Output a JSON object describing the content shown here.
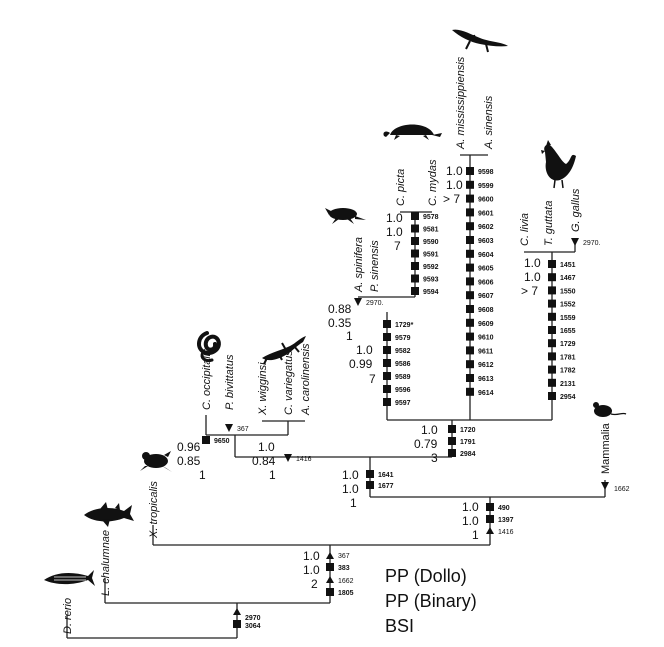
{
  "taxa": {
    "d_rerio": "D. rerio",
    "l_chalumnae": "L. chalumnae",
    "x_tropicalis": "X. tropicalis",
    "c_occipitalis": "C. occipitalis",
    "p_bivittatus": "P. bivittatus",
    "x_wigginsi": "X. wigginsi",
    "c_variegatus": "C. variegatus",
    "a_carolinensis": "A. carolinensis",
    "a_spinifera": "A. spinifera",
    "p_sinensis": "P. sinensis",
    "c_picta": "C. picta",
    "c_mydas": "C. mydas",
    "a_mississippiensis": "A. mississippiensis",
    "a_sinensis": "A. sinensis",
    "c_livia": "C. livia",
    "t_guttata": "T. guttata",
    "g_gallus": "G. gallus",
    "mammalia": "Mammalia"
  },
  "support": {
    "squamata": [
      "0.96",
      "0.85",
      "1"
    ],
    "toxicofera": [
      "1.0",
      "0.84",
      "1"
    ],
    "turtles": [
      "0.88",
      "0.35",
      "1"
    ],
    "cryptodira": [
      "1.0",
      "1.0",
      "7"
    ],
    "archelosauria": [
      "1.0",
      "0.99",
      "7"
    ],
    "crocodylia": [
      "1.0",
      "1.0",
      "> 7"
    ],
    "aves": [
      "1.0",
      "1.0",
      "> 7"
    ],
    "archosauria": [
      "1.0",
      "0.79",
      "3"
    ],
    "sauria": [
      "1.0",
      "1.0",
      "1"
    ],
    "amniota": [
      "1.0",
      "1.0",
      "1"
    ],
    "tetrapoda": [
      "1.0",
      "1.0",
      "2"
    ]
  },
  "events": {
    "snake": "367",
    "squamata": [
      "9650"
    ],
    "toxicofera": "1416",
    "trionychid": "2970.",
    "cryptodira": [
      "9578",
      "9581",
      "9590",
      "9591",
      "9592",
      "9593",
      "9594"
    ],
    "archelosauria": [
      "1729*",
      "9579",
      "9582",
      "9586",
      "9589",
      "9596",
      "9597"
    ],
    "crocodylia": [
      "9598",
      "9599",
      "9600",
      "9601",
      "9602",
      "9603",
      "9604",
      "9605",
      "9606",
      "9607",
      "9608",
      "9609",
      "9610",
      "9611",
      "9612",
      "9613",
      "9614"
    ],
    "aves": [
      "1451",
      "1467",
      "1550",
      "1552",
      "1559",
      "1655",
      "1729",
      "1781",
      "1782",
      "2131",
      "2954"
    ],
    "gallus": "2970.",
    "archosauria": [
      "1720",
      "1791",
      "2984"
    ],
    "sauria": [
      "1641",
      "1677"
    ],
    "mammalia": "1662",
    "amniota": [
      "490",
      "1397"
    ],
    "amniota_loss": "1416",
    "tetrapoda_a": "367",
    "tetrapoda_b": [
      "383"
    ],
    "tetrapoda_c": "1662",
    "tetrapoda_d": [
      "1805"
    ],
    "root_a": "2970",
    "root_b": [
      "3064"
    ]
  },
  "legend": {
    "line1": "PP (Dollo)",
    "line2": "PP (Binary)",
    "line3": "BSI"
  }
}
